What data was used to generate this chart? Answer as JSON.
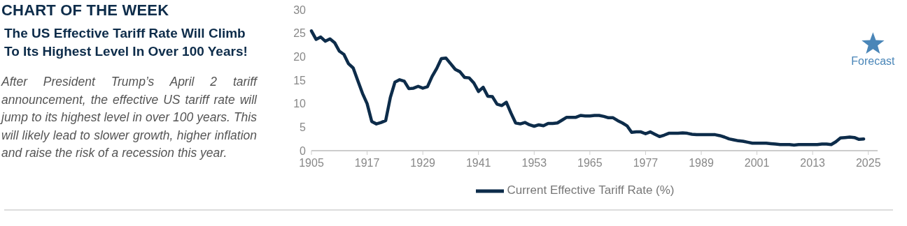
{
  "chart_data": {
    "type": "line",
    "title": "CHART OF THE WEEK",
    "subtitle": "The US Effective Tariff Rate Will Climb To Its Highest Level In Over 100 Years!",
    "annotations": [
      "After President Trump’s April 2 tariff announcement, the effective US tariff rate will jump to its highest level in over 100 years. This will likely lead to slower growth, higher inflation and raise the risk of a recession this year."
    ],
    "x": [
      1905,
      1906,
      1907,
      1908,
      1909,
      1910,
      1911,
      1912,
      1913,
      1914,
      1915,
      1916,
      1917,
      1918,
      1919,
      1920,
      1921,
      1922,
      1923,
      1924,
      1925,
      1926,
      1927,
      1928,
      1929,
      1930,
      1931,
      1932,
      1933,
      1934,
      1935,
      1936,
      1937,
      1938,
      1939,
      1940,
      1941,
      1942,
      1943,
      1944,
      1945,
      1946,
      1947,
      1948,
      1949,
      1950,
      1951,
      1952,
      1953,
      1954,
      1955,
      1956,
      1957,
      1958,
      1959,
      1960,
      1961,
      1962,
      1963,
      1964,
      1965,
      1966,
      1967,
      1968,
      1969,
      1970,
      1971,
      1972,
      1973,
      1974,
      1975,
      1976,
      1977,
      1978,
      1979,
      1980,
      1981,
      1982,
      1983,
      1984,
      1985,
      1986,
      1987,
      1988,
      1989,
      1990,
      1991,
      1992,
      1993,
      1994,
      1995,
      1996,
      1997,
      1998,
      1999,
      2000,
      2001,
      2002,
      2003,
      2004,
      2005,
      2006,
      2007,
      2008,
      2009,
      2010,
      2011,
      2012,
      2013,
      2014,
      2015,
      2016,
      2017,
      2018,
      2019,
      2020,
      2021,
      2022,
      2023,
      2024
    ],
    "series": [
      {
        "name": "Current Effective Tariff Rate (%)",
        "color": "#0d2c4a",
        "values": [
          25.5,
          23.7,
          24.2,
          23.3,
          23.8,
          23.0,
          21.2,
          20.5,
          18.5,
          17.6,
          14.9,
          12.2,
          10.0,
          6.2,
          5.7,
          6.0,
          6.4,
          11.3,
          14.6,
          15.1,
          14.8,
          13.2,
          13.3,
          13.7,
          13.3,
          13.6,
          15.8,
          17.5,
          19.6,
          19.7,
          18.5,
          17.3,
          16.8,
          15.6,
          15.5,
          14.4,
          12.6,
          13.5,
          11.6,
          11.5,
          9.9,
          9.6,
          10.3,
          8.0,
          5.9,
          5.7,
          6.0,
          5.5,
          5.2,
          5.5,
          5.3,
          5.8,
          5.8,
          5.9,
          6.5,
          7.1,
          7.1,
          7.1,
          7.5,
          7.4,
          7.4,
          7.5,
          7.5,
          7.3,
          7.0,
          7.0,
          6.4,
          5.9,
          5.3,
          3.9,
          4.0,
          4.0,
          3.6,
          4.0,
          3.5,
          3.0,
          3.3,
          3.7,
          3.7,
          3.7,
          3.8,
          3.7,
          3.5,
          3.4,
          3.4,
          3.4,
          3.4,
          3.4,
          3.2,
          2.9,
          2.5,
          2.3,
          2.1,
          2.0,
          1.8,
          1.6,
          1.6,
          1.6,
          1.6,
          1.5,
          1.4,
          1.3,
          1.3,
          1.3,
          1.2,
          1.3,
          1.3,
          1.3,
          1.3,
          1.3,
          1.4,
          1.4,
          1.3,
          1.9,
          2.7,
          2.8,
          2.9,
          2.8,
          2.4,
          2.5
        ]
      },
      {
        "name": "Forecast",
        "type": "scatter",
        "marker": "star",
        "color": "#4a86b8",
        "x": [
          2026
        ],
        "values": [
          22.7
        ]
      }
    ],
    "xlim": [
      1905,
      2027
    ],
    "xticks": [
      1905,
      1917,
      1929,
      1941,
      1953,
      1965,
      1977,
      1989,
      2001,
      2013,
      2025
    ],
    "ylim": [
      0,
      30
    ],
    "yticks": [
      0,
      5,
      10,
      15,
      20,
      25,
      30
    ],
    "grid": false,
    "legend": "bottom",
    "marker": "none",
    "line_style": "solid"
  }
}
